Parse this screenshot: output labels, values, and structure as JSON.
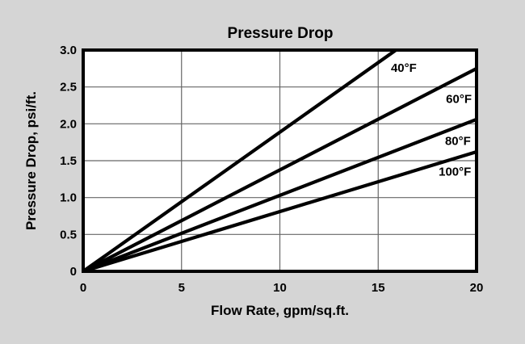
{
  "colors": {
    "background": "#d5d5d5",
    "plot_background": "#ffffff",
    "frame": "#000000",
    "grid": "#666666",
    "series_line": "#000000",
    "text": "#000000"
  },
  "chart_data": {
    "type": "line",
    "title": "Pressure Drop",
    "xlabel": "Flow Rate, gpm/sq.ft.",
    "ylabel": "Pressure Drop, psi/ft.",
    "xlim": [
      0,
      20
    ],
    "ylim": [
      0,
      3.0
    ],
    "grid": true,
    "legend_position": "inline labels near line ends",
    "x_ticks": {
      "values": [
        0,
        5,
        10,
        15,
        20
      ],
      "labels": [
        "0",
        "5",
        "10",
        "15",
        "20"
      ]
    },
    "y_ticks": {
      "values": [
        0,
        0.5,
        1.0,
        1.5,
        2.0,
        2.5,
        3.0
      ],
      "labels": [
        "0",
        "0.5",
        "1.0",
        "1.5",
        "2.0",
        "2.5",
        "3.0"
      ]
    },
    "series": [
      {
        "name": "40°F",
        "points": [
          [
            0,
            0
          ],
          [
            15.9,
            3.0
          ]
        ],
        "slope_psi_per_gpm": 0.19,
        "label_at": [
          16.3,
          2.76
        ]
      },
      {
        "name": "60°F",
        "points": [
          [
            0,
            0
          ],
          [
            20,
            2.75
          ]
        ],
        "slope_psi_per_gpm": 0.1375,
        "label_at": [
          19.1,
          2.34
        ]
      },
      {
        "name": "80°F",
        "points": [
          [
            0,
            0
          ],
          [
            20,
            2.06
          ]
        ],
        "slope_psi_per_gpm": 0.103,
        "label_at": [
          19.05,
          1.77
        ]
      },
      {
        "name": "100°F",
        "points": [
          [
            0,
            0
          ],
          [
            20,
            1.62
          ]
        ],
        "slope_psi_per_gpm": 0.081,
        "label_at": [
          18.9,
          1.35
        ]
      }
    ]
  }
}
